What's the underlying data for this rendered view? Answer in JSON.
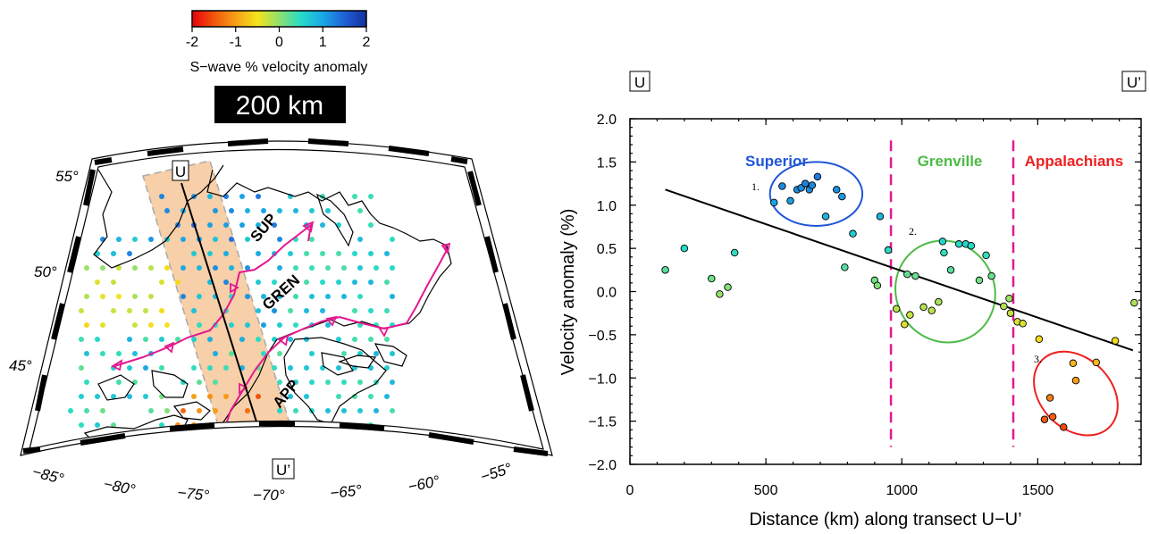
{
  "colorbar": {
    "ticks": [
      "-2",
      "-1",
      "0",
      "1",
      "2"
    ],
    "label": "S−wave % velocity anomaly",
    "stops": [
      {
        "v": -2,
        "color": "#e8000b"
      },
      {
        "v": -1.5,
        "color": "#f2550c"
      },
      {
        "v": -1,
        "color": "#f7a017"
      },
      {
        "v": -0.5,
        "color": "#f5e31b"
      },
      {
        "v": 0,
        "color": "#8fe06e"
      },
      {
        "v": 0.5,
        "color": "#25dcc8"
      },
      {
        "v": 1,
        "color": "#19a7e6"
      },
      {
        "v": 1.5,
        "color": "#2160d6"
      },
      {
        "v": 2,
        "color": "#1430a0"
      }
    ]
  },
  "depth_label": "200 km",
  "map": {
    "lat_labels": [
      "55°",
      "50°",
      "45°"
    ],
    "lon_labels": [
      "−85°",
      "−80°",
      "−75°",
      "−70°",
      "−65°",
      "−60°",
      "−55°"
    ],
    "province_labels": [
      "SUP",
      "GREN",
      "APP"
    ],
    "transect_start": "U",
    "transect_end": "U’",
    "colors": {
      "suture": "#e4188f",
      "swath": "#f7cfa8"
    }
  },
  "chart_data": {
    "type": "scatter",
    "xlabel": "Distance (km) along transect U−U’",
    "ylabel": "Velocity anomaly (%)",
    "xlim": [
      0,
      1880
    ],
    "ylim": [
      -2.0,
      2.0
    ],
    "xticks": [
      "0",
      "500",
      "1000",
      "1500"
    ],
    "yticks": [
      "2.0",
      "1.5",
      "1.0",
      "0.5",
      "0.0",
      "−0.5",
      "−1.0",
      "−1.5",
      "−2.0"
    ],
    "endpoint_left": "U",
    "endpoint_right": "U’",
    "points": [
      {
        "x": 130,
        "y": 0.25
      },
      {
        "x": 200,
        "y": 0.5
      },
      {
        "x": 300,
        "y": 0.15
      },
      {
        "x": 330,
        "y": -0.03
      },
      {
        "x": 360,
        "y": 0.05
      },
      {
        "x": 385,
        "y": 0.45
      },
      {
        "x": 530,
        "y": 1.03
      },
      {
        "x": 560,
        "y": 1.22
      },
      {
        "x": 590,
        "y": 1.05
      },
      {
        "x": 615,
        "y": 1.18
      },
      {
        "x": 630,
        "y": 1.2
      },
      {
        "x": 645,
        "y": 1.25
      },
      {
        "x": 660,
        "y": 1.18
      },
      {
        "x": 670,
        "y": 1.23
      },
      {
        "x": 690,
        "y": 1.33
      },
      {
        "x": 720,
        "y": 0.87
      },
      {
        "x": 760,
        "y": 1.18
      },
      {
        "x": 780,
        "y": 1.1
      },
      {
        "x": 790,
        "y": 0.28
      },
      {
        "x": 820,
        "y": 0.67
      },
      {
        "x": 900,
        "y": 0.13
      },
      {
        "x": 910,
        "y": 0.07
      },
      {
        "x": 920,
        "y": 0.87
      },
      {
        "x": 950,
        "y": 0.48
      },
      {
        "x": 980,
        "y": -0.2
      },
      {
        "x": 1010,
        "y": -0.38
      },
      {
        "x": 1020,
        "y": 0.2
      },
      {
        "x": 1030,
        "y": -0.27
      },
      {
        "x": 1050,
        "y": 0.18
      },
      {
        "x": 1080,
        "y": -0.18
      },
      {
        "x": 1110,
        "y": -0.22
      },
      {
        "x": 1135,
        "y": -0.12
      },
      {
        "x": 1150,
        "y": 0.58
      },
      {
        "x": 1155,
        "y": 0.45
      },
      {
        "x": 1180,
        "y": 0.25
      },
      {
        "x": 1210,
        "y": 0.55
      },
      {
        "x": 1235,
        "y": 0.55
      },
      {
        "x": 1255,
        "y": 0.53
      },
      {
        "x": 1285,
        "y": 0.13
      },
      {
        "x": 1310,
        "y": 0.42
      },
      {
        "x": 1330,
        "y": 0.18
      },
      {
        "x": 1375,
        "y": -0.17
      },
      {
        "x": 1395,
        "y": -0.08
      },
      {
        "x": 1400,
        "y": -0.25
      },
      {
        "x": 1425,
        "y": -0.35
      },
      {
        "x": 1445,
        "y": -0.37
      },
      {
        "x": 1505,
        "y": -0.55
      },
      {
        "x": 1525,
        "y": -1.48
      },
      {
        "x": 1545,
        "y": -1.23
      },
      {
        "x": 1555,
        "y": -1.45
      },
      {
        "x": 1595,
        "y": -1.57
      },
      {
        "x": 1630,
        "y": -0.83
      },
      {
        "x": 1640,
        "y": -1.03
      },
      {
        "x": 1715,
        "y": -0.82
      },
      {
        "x": 1785,
        "y": -0.57
      },
      {
        "x": 1855,
        "y": -0.13
      }
    ],
    "regression_line": {
      "x": [
        130,
        1850
      ],
      "y": [
        1.18,
        -0.68
      ]
    },
    "boundaries": [
      {
        "x": 960
      },
      {
        "x": 1410
      }
    ],
    "provinces": [
      {
        "name": "Superior",
        "color": "#1f56d6",
        "x": 430
      },
      {
        "name": "Grenville",
        "color": "#4dbb46",
        "x": 1160
      },
      {
        "name": "Appalachians",
        "color": "#ee2020",
        "x": 1580
      }
    ],
    "ellipses": [
      {
        "label": "1.",
        "color": "#1f56d6",
        "cx": 685,
        "cy": 1.13,
        "rx": 170,
        "ry": 0.37
      },
      {
        "label": "2.",
        "color": "#4dbb46",
        "cx": 1160,
        "cy": 0.0,
        "rx": 180,
        "ry": 0.6
      },
      {
        "label": "3.",
        "color": "#ee2020",
        "cx": 1640,
        "cy": -1.18,
        "rx": 130,
        "ry": 0.55
      }
    ]
  }
}
